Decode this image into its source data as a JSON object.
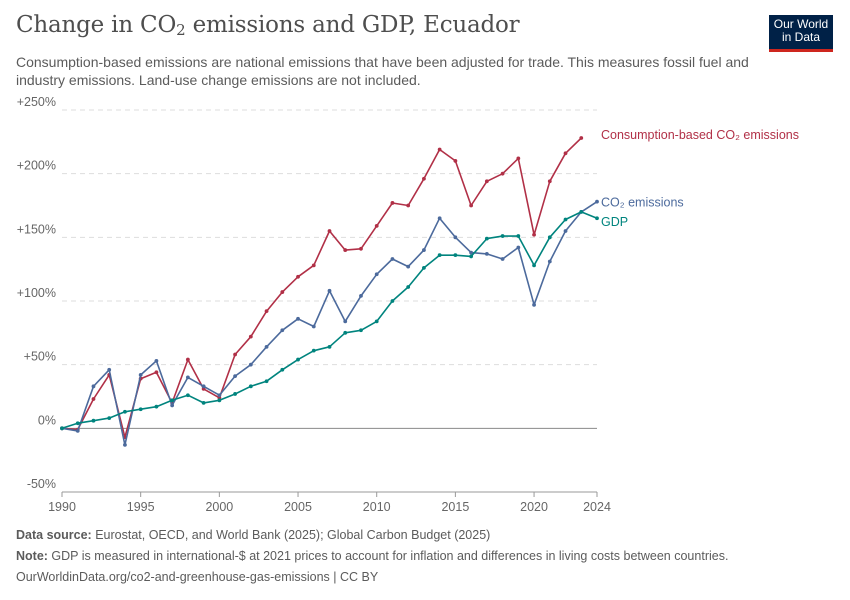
{
  "header": {
    "title_main": "Change in CO",
    "title_sub": "2",
    "title_rest": " emissions and GDP, Ecuador",
    "subtitle": "Consumption-based emissions are national emissions that have been adjusted for trade. This measures fossil fuel and industry emissions. Land-use change emissions are not included."
  },
  "logo": {
    "line1": "Our World",
    "line2": "in Data"
  },
  "footer": {
    "source_label": "Data source:",
    "source_text": " Eurostat, OECD, and World Bank (2025); Global Carbon Budget (2025)",
    "note_label": "Note:",
    "note_text": " GDP is measured in international-$ at 2021 prices to account for inflation and differences in living costs between countries.",
    "url": "OurWorldinData.org/co2-and-greenhouse-gas-emissions | CC BY"
  },
  "chart_data": {
    "type": "line",
    "ylim": [
      -50,
      250
    ],
    "xlim": [
      1990,
      2024
    ],
    "y_ticks": [
      -50,
      0,
      50,
      100,
      150,
      200,
      250
    ],
    "y_tick_labels": [
      "-50%",
      "0%",
      "+50%",
      "+100%",
      "+150%",
      "+200%",
      "+250%"
    ],
    "x_ticks": [
      1990,
      1995,
      2000,
      2005,
      2010,
      2015,
      2020,
      2024
    ],
    "x_tick_labels": [
      "1990",
      "1995",
      "2000",
      "2005",
      "2010",
      "2015",
      "2020",
      "2024"
    ],
    "grid": true,
    "legend": "inline-right",
    "series": [
      {
        "name": "Consumption-based CO₂ emissions",
        "color": "#b13047",
        "x": [
          1990,
          1991,
          1992,
          1993,
          1994,
          1995,
          1996,
          1997,
          1998,
          1999,
          2000,
          2001,
          2002,
          2003,
          2004,
          2005,
          2006,
          2007,
          2008,
          2009,
          2010,
          2011,
          2012,
          2013,
          2014,
          2015,
          2016,
          2017,
          2018,
          2019,
          2020,
          2021,
          2022,
          2023
        ],
        "values": [
          0,
          -1,
          23,
          42,
          -7,
          39,
          44,
          20,
          54,
          31,
          24,
          58,
          72,
          92,
          107,
          119,
          128,
          155,
          140,
          141,
          159,
          177,
          175,
          196,
          219,
          210,
          175,
          194,
          200,
          212,
          152,
          194,
          216,
          228
        ]
      },
      {
        "name": "CO₂ emissions",
        "color": "#4c6a9c",
        "x": [
          1990,
          1991,
          1992,
          1993,
          1994,
          1995,
          1996,
          1997,
          1998,
          1999,
          2000,
          2001,
          2002,
          2003,
          2004,
          2005,
          2006,
          2007,
          2008,
          2009,
          2010,
          2011,
          2012,
          2013,
          2014,
          2015,
          2016,
          2017,
          2018,
          2019,
          2020,
          2021,
          2022,
          2023,
          2024
        ],
        "values": [
          0,
          -2,
          33,
          46,
          -13,
          42,
          53,
          18,
          40,
          33,
          26,
          41,
          50,
          64,
          77,
          86,
          80,
          108,
          84,
          104,
          121,
          133,
          127,
          140,
          165,
          150,
          138,
          137,
          133,
          142,
          97,
          131,
          155,
          170,
          178
        ]
      },
      {
        "name": "GDP",
        "color": "#00847e",
        "x": [
          1990,
          1991,
          1992,
          1993,
          1994,
          1995,
          1996,
          1997,
          1998,
          1999,
          2000,
          2001,
          2002,
          2003,
          2004,
          2005,
          2006,
          2007,
          2008,
          2009,
          2010,
          2011,
          2012,
          2013,
          2014,
          2015,
          2016,
          2017,
          2018,
          2019,
          2020,
          2021,
          2022,
          2023,
          2024
        ],
        "values": [
          0,
          4,
          6,
          8,
          13,
          15,
          17,
          22,
          26,
          20,
          22,
          27,
          33,
          37,
          46,
          54,
          61,
          64,
          75,
          77,
          84,
          100,
          111,
          126,
          136,
          136,
          135,
          149,
          151,
          151,
          128,
          150,
          164,
          170,
          165
        ]
      }
    ]
  }
}
